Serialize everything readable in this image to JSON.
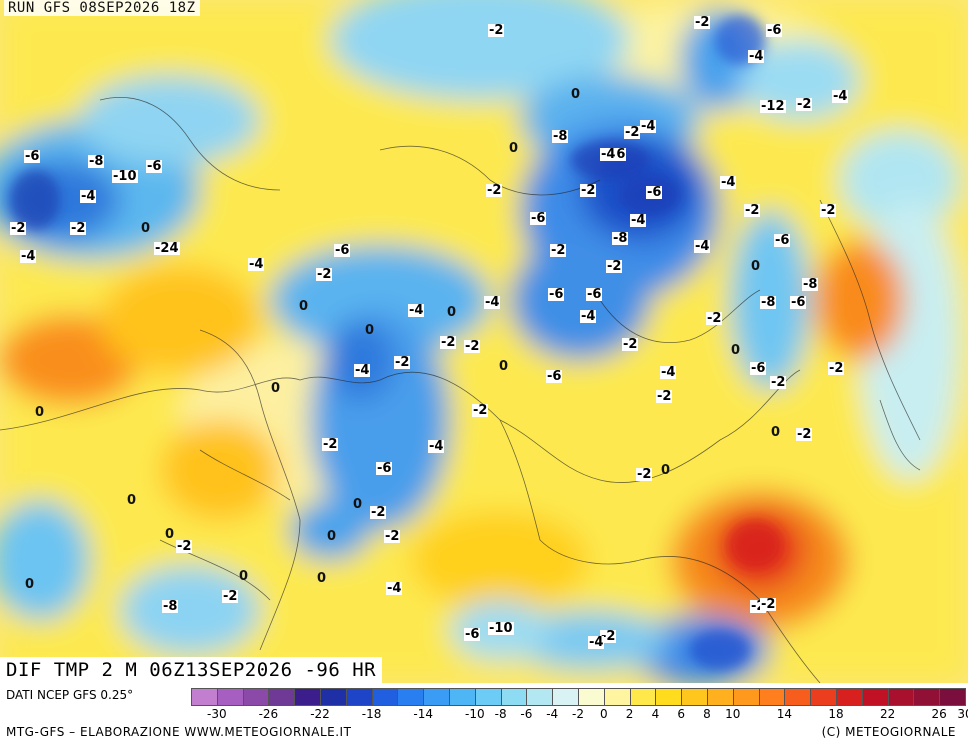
{
  "header": {
    "run_title": "RUN GFS 08SEP2026 18Z"
  },
  "map": {
    "field_title": "DIF TMP 2 M 06Z13SEP2026 -96 HR",
    "labels": [
      "-2",
      "-2",
      "-6",
      "-2",
      "0",
      "-4",
      "-12",
      "-2",
      "-4",
      "-6",
      "-8",
      "-10",
      "-6",
      "-4",
      "-6",
      "-8",
      "-2",
      "-4",
      "-2",
      "-6",
      "-4",
      "-2",
      "-2",
      "0",
      "-4",
      "-6",
      "-4",
      "-2",
      "-8",
      "-4",
      "-6",
      "-2",
      "-2",
      "0",
      "-24",
      "-4",
      "-6",
      "-4",
      "-2",
      "0",
      "-4",
      "0",
      "-4",
      "-6",
      "-6",
      "-2",
      "0",
      "-8",
      "-4",
      "-8",
      "-6",
      "-2",
      "0",
      "-2",
      "-2",
      "-2",
      "0",
      "-2",
      "0",
      "-4",
      "-6",
      "-4",
      "-6",
      "-2",
      "-2",
      "0",
      "0",
      "-2",
      "-2",
      "-2",
      "-4",
      "0",
      "-2",
      "-6",
      "0",
      "-2",
      "0",
      "0",
      "-2",
      "0",
      "-2",
      "0",
      "-2",
      "0",
      "0",
      "-4",
      "0",
      "-2",
      "-8",
      "-6",
      "-10",
      "-2",
      "-4",
      "-2",
      "-2"
    ]
  },
  "footer": {
    "source": "DATI NCEP GFS 0.25°",
    "credit": "MTG-GFS – ELABORAZIONE WWW.METEOGIORNALE.IT",
    "copyright": "(C) METEOGIORNALE"
  },
  "colorbar": {
    "colors": [
      "#c27fd0",
      "#a65fc0",
      "#8c4aa8",
      "#6f3a95",
      "#3b1e8c",
      "#1f2fa5",
      "#1e44c8",
      "#1f5fe0",
      "#2a7ff0",
      "#3a9cf5",
      "#4fb6f5",
      "#6cccf5",
      "#8ddcf3",
      "#b3e8f3",
      "#d9f3f4",
      "#fbfbd2",
      "#fff5a0",
      "#ffe94a",
      "#ffdc1e",
      "#ffc61e",
      "#ffb01e",
      "#ff991e",
      "#ff7f1e",
      "#f75e1e",
      "#ea3e1e",
      "#d8201e",
      "#c01224",
      "#a8102e",
      "#901036",
      "#7a0e3c"
    ],
    "tick_labels": [
      "-30",
      "-26",
      "-22",
      "-18",
      "-14",
      "-10",
      "-8",
      "-6",
      "-4",
      "-2",
      "0",
      "2",
      "4",
      "6",
      "8",
      "10",
      "14",
      "18",
      "22",
      "26",
      "30"
    ]
  }
}
